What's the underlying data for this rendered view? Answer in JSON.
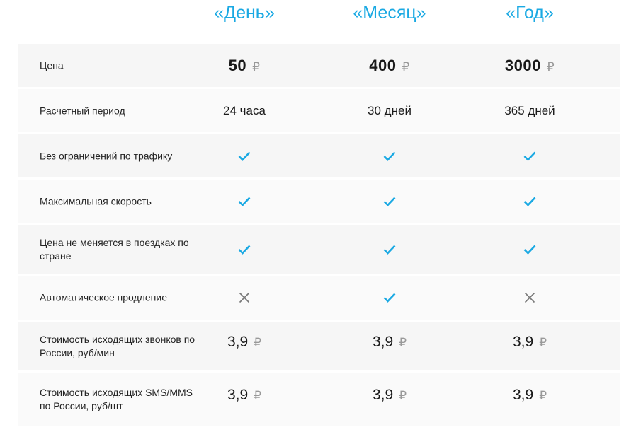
{
  "plans": [
    "«День»",
    "«Месяц»",
    "«Год»"
  ],
  "colors": {
    "accent": "#1aa9e3",
    "cross": "#777777",
    "row_a": "#f6f6f6",
    "row_b": "#fafafa"
  },
  "currency": "₽",
  "rows": [
    {
      "label": "Цена",
      "type": "price",
      "values": [
        "50",
        "400",
        "3000"
      ]
    },
    {
      "label": "Расчетный период",
      "type": "text",
      "values": [
        "24 часа",
        "30 дней",
        "365 дней"
      ]
    },
    {
      "label": "Без ограничений по трафику",
      "type": "mark",
      "values": [
        true,
        true,
        true
      ]
    },
    {
      "label": "Максимальная скорость",
      "type": "mark",
      "values": [
        true,
        true,
        true
      ]
    },
    {
      "label": "Цена не меняется в поездках по стране",
      "type": "mark",
      "values": [
        true,
        true,
        true
      ]
    },
    {
      "label": "Автоматическое продление",
      "type": "mark",
      "values": [
        false,
        true,
        false
      ]
    },
    {
      "label": "Стоимость исходящих звонков по России, руб/мин",
      "type": "rate",
      "values": [
        "3,9",
        "3,9",
        "3,9"
      ]
    },
    {
      "label": "Стоимость исходящих SMS/MMS по России, руб/шт",
      "type": "rate",
      "values": [
        "3,9",
        "3,9",
        "3,9"
      ]
    }
  ]
}
